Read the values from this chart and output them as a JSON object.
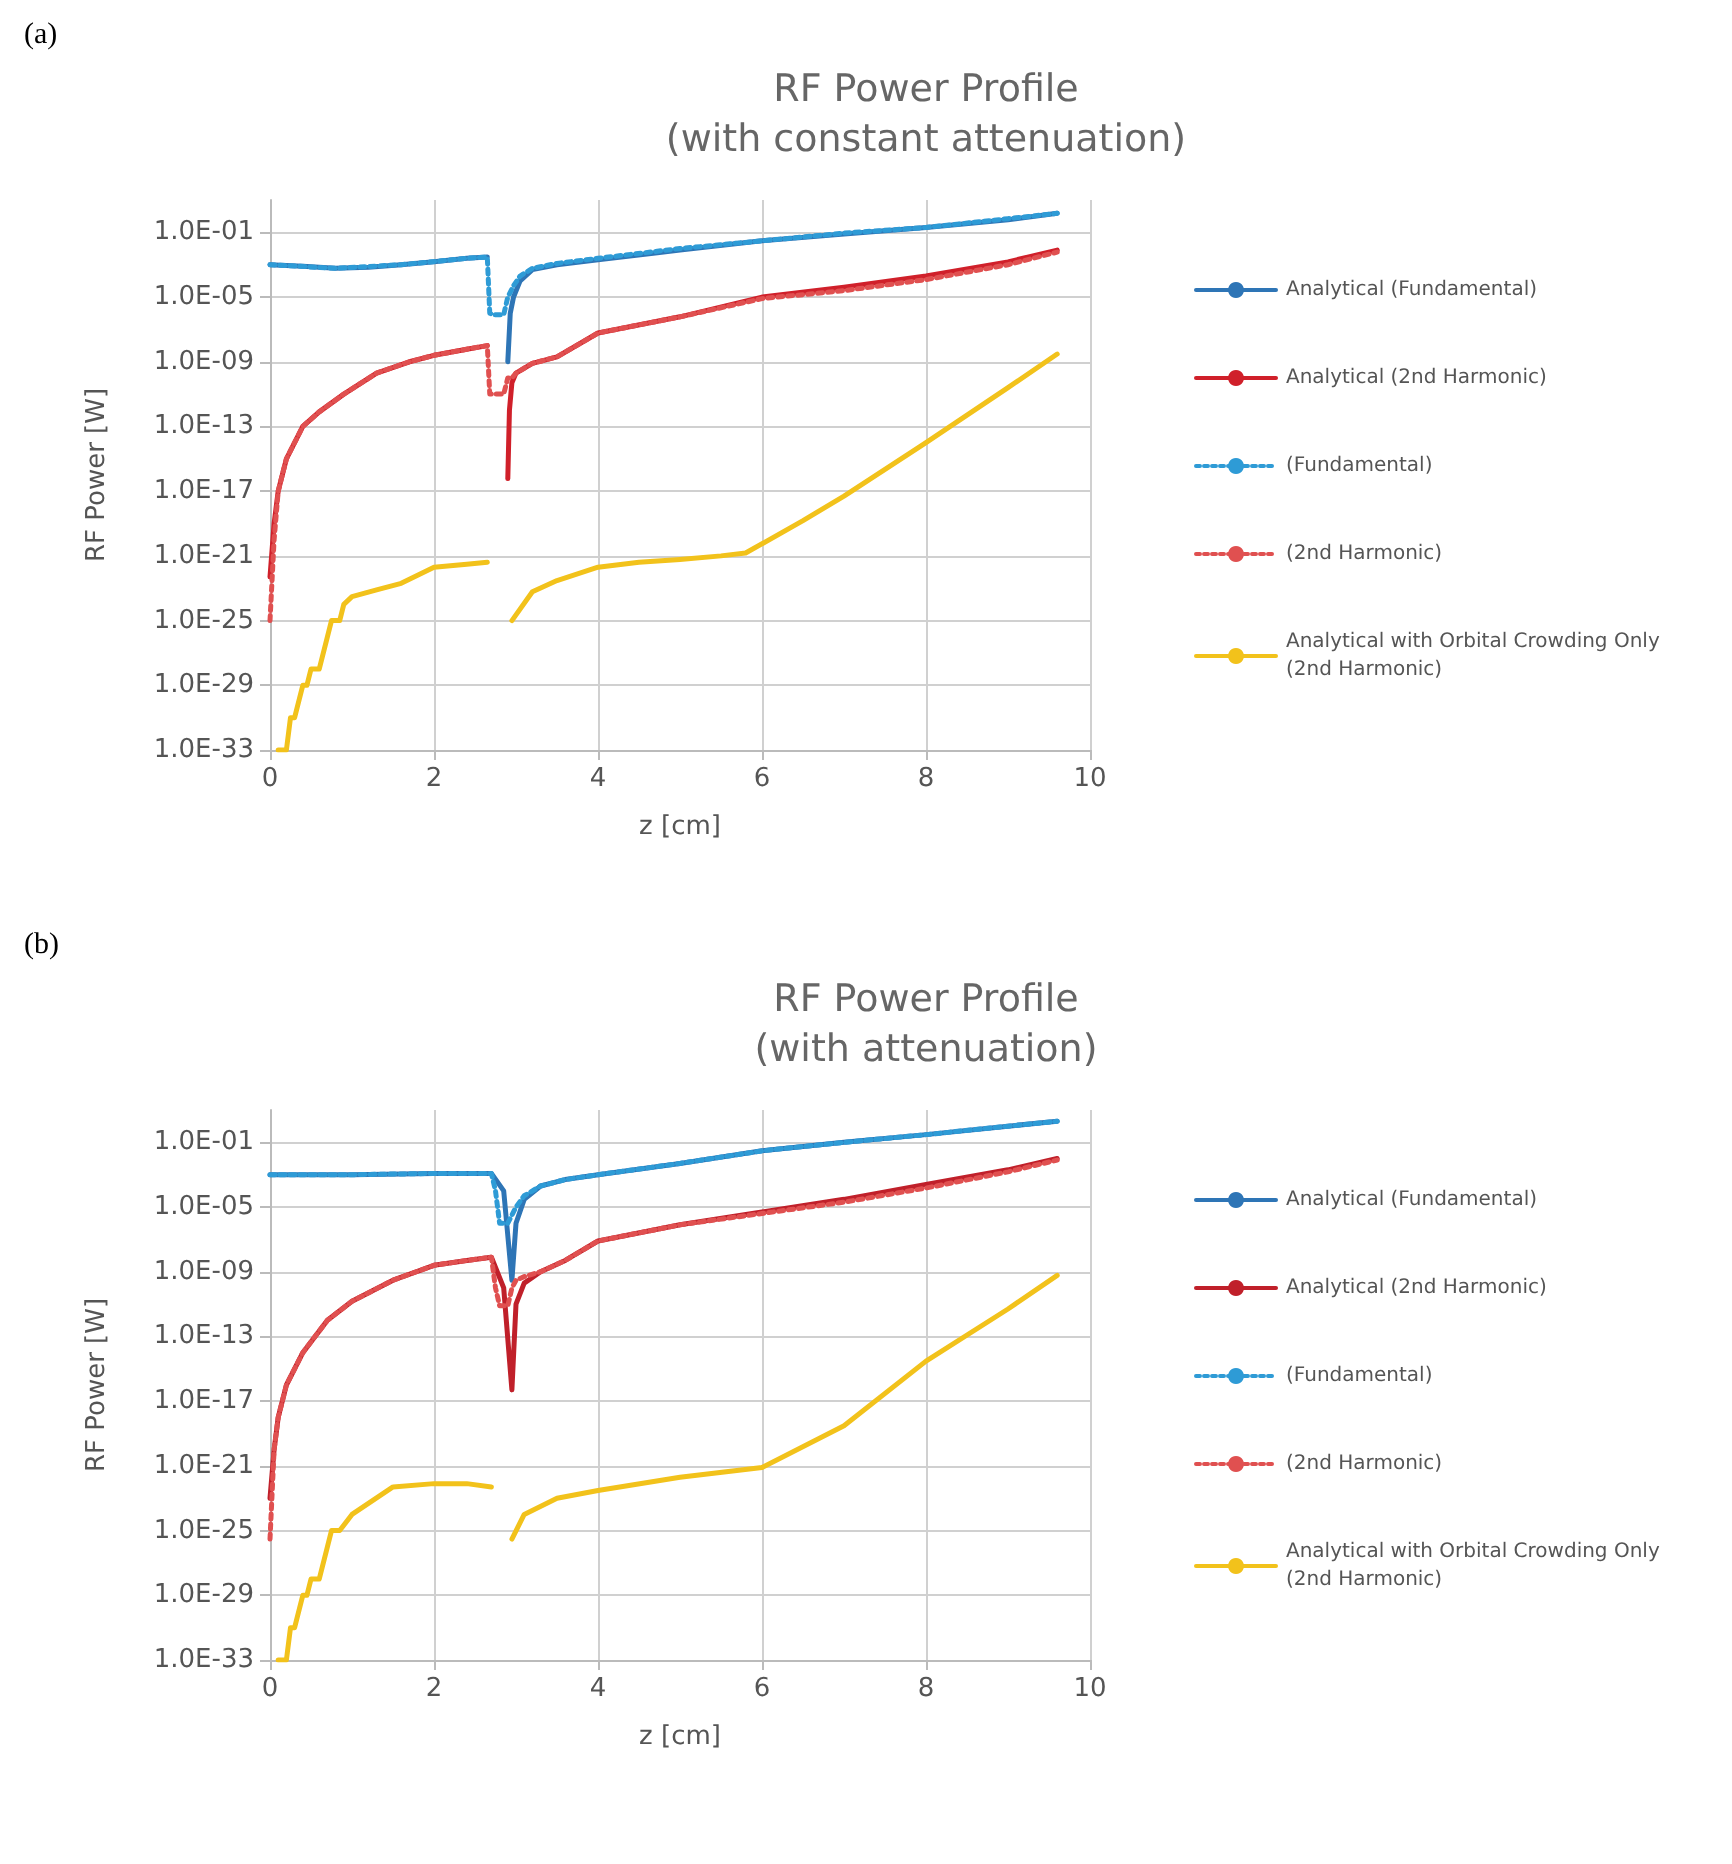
{
  "chart_data": [
    {
      "type": "line",
      "title": "RF Power Profile",
      "subtitle": "(with constant attenuation)",
      "xlabel": "z [cm]",
      "ylabel": "RF Power [W]",
      "annotations": [
        "(a)"
      ],
      "log": "y",
      "grid": true,
      "legend": "right",
      "marker": "none",
      "xlim": [
        0,
        10
      ],
      "xticks": [
        0,
        2,
        4,
        6,
        8,
        10
      ],
      "ylim": [
        1e-33,
        10
      ],
      "yticks": [
        {
          "value": 1e-33,
          "label": "1.0E-33"
        },
        {
          "value": 1e-29,
          "label": "1.0E-29"
        },
        {
          "value": 1e-25,
          "label": "1.0E-25"
        },
        {
          "value": 1e-21,
          "label": "1.0E-21"
        },
        {
          "value": 1e-17,
          "label": "1.0E-17"
        },
        {
          "value": 1e-13,
          "label": "1.0E-13"
        },
        {
          "value": 1e-09,
          "label": "1.0E-09"
        },
        {
          "value": 1e-05,
          "label": "1.0E-05"
        },
        {
          "value": 0.1,
          "label": "1.0E-01"
        }
      ],
      "series": [
        {
          "name": "Analytical (Fundamental)",
          "color": "#2e75b6",
          "line_style": "solid",
          "x": [
            0,
            0.4,
            0.8,
            1.2,
            1.6,
            2.0,
            2.4,
            2.65,
            2.8,
            2.9,
            2.93,
            2.97,
            3.05,
            3.2,
            3.5,
            4,
            5,
            6,
            7,
            8,
            9,
            9.6
          ],
          "values": [
            0.001,
            0.0008,
            0.0006,
            0.0007,
            0.001,
            0.0015,
            0.0025,
            0.003,
            null,
            1e-09,
            1e-06,
            1e-05,
            0.0001,
            0.0005,
            0.001,
            0.002,
            0.008,
            0.03,
            0.08,
            0.2,
            0.6,
            1.5
          ]
        },
        {
          "name": "Analytical (2nd Harmonic)",
          "color": "#d0202a",
          "line_style": "solid",
          "x": [
            0,
            0.05,
            0.1,
            0.2,
            0.4,
            0.6,
            0.9,
            1.3,
            1.7,
            2.0,
            2.4,
            2.65,
            2.8,
            2.9,
            2.92,
            2.95,
            3.0,
            3.2,
            3.5,
            4,
            5,
            6,
            7,
            8,
            9,
            9.6
          ],
          "values": [
            5e-23,
            1e-19,
            1e-17,
            1e-15,
            1e-13,
            8e-13,
            1e-11,
            2e-10,
            1e-09,
            2.5e-09,
            6e-09,
            1e-08,
            null,
            6e-17,
            1e-12,
            5e-11,
            2e-10,
            8e-10,
            2e-09,
            6e-08,
            6e-07,
            1e-05,
            4e-05,
            0.0002,
            0.0015,
            0.008
          ]
        },
        {
          "name": "(Fundamental)",
          "color": "#2e9bd6",
          "line_style": "dotted",
          "x": [
            0,
            0.8,
            1.6,
            2.4,
            2.65,
            2.68,
            2.72,
            2.85,
            2.9,
            2.97,
            3.05,
            3.2,
            3.5,
            4,
            5,
            6,
            7,
            8,
            9,
            9.6
          ],
          "values": [
            0.001,
            0.0006,
            0.001,
            0.0025,
            0.003,
            1e-06,
            8e-07,
            8e-07,
            1e-05,
            5e-05,
            0.0002,
            0.0006,
            0.0012,
            0.0025,
            0.01,
            0.03,
            0.09,
            0.2,
            0.7,
            1.5
          ]
        },
        {
          "name": "(2nd Harmonic)",
          "color": "#e05050",
          "line_style": "dotted",
          "x": [
            0,
            0.05,
            0.1,
            0.2,
            0.4,
            0.6,
            0.9,
            1.3,
            1.7,
            2.0,
            2.4,
            2.65,
            2.68,
            2.72,
            2.85,
            2.9,
            2.95,
            3.0,
            3.2,
            3.5,
            4,
            5,
            6,
            7,
            8,
            9,
            9.6
          ],
          "values": [
            1e-25,
            1e-20,
            1e-17,
            1e-15,
            1e-13,
            8e-13,
            1e-11,
            2e-10,
            1e-09,
            2.5e-09,
            6e-09,
            1e-08,
            1e-11,
            1e-11,
            1e-11,
            1e-10,
            1e-10,
            2e-10,
            8e-10,
            2e-09,
            6e-08,
            6e-07,
            8e-06,
            2.5e-05,
            0.00012,
            0.001,
            0.006
          ]
        },
        {
          "name": "Analytical with Orbital Crowding Only (2nd Harmonic)",
          "color": "#f2c21b",
          "line_style": "solid",
          "x": [
            0.1,
            0.2,
            0.25,
            0.3,
            0.4,
            0.45,
            0.5,
            0.6,
            0.7,
            0.75,
            0.85,
            0.9,
            1.0,
            1.3,
            1.6,
            2.0,
            2.4,
            2.65,
            2.8,
            2.95,
            3.2,
            3.5,
            4,
            4.5,
            5,
            5.5,
            5.8,
            6.5,
            7,
            8,
            9,
            9.6
          ],
          "values": [
            1e-33,
            1e-33,
            1e-31,
            1e-31,
            1e-29,
            1e-29,
            1e-28,
            1e-28,
            1e-26,
            1e-25,
            1e-25,
            1e-24,
            3e-24,
            8e-24,
            2e-23,
            2e-22,
            3e-22,
            4e-22,
            null,
            1e-25,
            6e-24,
            3e-23,
            2e-22,
            4e-22,
            6e-22,
            1e-21,
            1.5e-21,
            1.5e-19,
            5e-18,
            1e-14,
            2.5e-11,
            3e-09
          ]
        }
      ]
    },
    {
      "type": "line",
      "title": "RF Power Profile",
      "subtitle": "(with attenuation)",
      "xlabel": "z [cm]",
      "ylabel": "RF Power [W]",
      "annotations": [
        "(b)"
      ],
      "log": "y",
      "grid": true,
      "legend": "right",
      "marker": "none",
      "xlim": [
        0,
        10
      ],
      "xticks": [
        0,
        2,
        4,
        6,
        8,
        10
      ],
      "ylim": [
        1e-33,
        10
      ],
      "yticks": [
        {
          "value": 1e-33,
          "label": "1.0E-33"
        },
        {
          "value": 1e-29,
          "label": "1.0E-29"
        },
        {
          "value": 1e-25,
          "label": "1.0E-25"
        },
        {
          "value": 1e-21,
          "label": "1.0E-21"
        },
        {
          "value": 1e-17,
          "label": "1.0E-17"
        },
        {
          "value": 1e-13,
          "label": "1.0E-13"
        },
        {
          "value": 1e-09,
          "label": "1.0E-09"
        },
        {
          "value": 1e-05,
          "label": "1.0E-05"
        },
        {
          "value": 0.1,
          "label": "1.0E-01"
        }
      ],
      "series": [
        {
          "name": "Analytical (Fundamental)",
          "color": "#2e75b6",
          "line_style": "solid",
          "x": [
            0,
            1,
            2,
            2.7,
            2.85,
            2.95,
            3.0,
            3.1,
            3.3,
            3.6,
            4,
            5,
            6,
            7,
            8,
            9,
            9.6
          ],
          "values": [
            0.001,
            0.001,
            0.0012,
            0.0012,
            0.0001,
            3e-10,
            1e-06,
            3e-05,
            0.0002,
            0.0005,
            0.001,
            0.005,
            0.03,
            0.1,
            0.3,
            1,
            2
          ]
        },
        {
          "name": "Analytical (2nd Harmonic)",
          "color": "#c0202a",
          "line_style": "solid",
          "x": [
            0,
            0.05,
            0.1,
            0.2,
            0.4,
            0.7,
            1.0,
            1.5,
            2.0,
            2.4,
            2.7,
            2.85,
            2.95,
            3.0,
            3.1,
            3.3,
            3.6,
            4,
            5,
            6,
            7,
            8,
            9,
            9.6
          ],
          "values": [
            1e-23,
            1e-20,
            1e-18,
            1e-16,
            1e-14,
            1e-12,
            1.5e-11,
            3e-10,
            2.5e-09,
            5e-09,
            8e-09,
            1e-10,
            5e-17,
            1e-11,
            2e-10,
            1e-09,
            5e-09,
            8e-08,
            8e-07,
            5e-06,
            3e-05,
            0.00025,
            0.002,
            0.01
          ]
        },
        {
          "name": "(Fundamental)",
          "color": "#2e9bd6",
          "line_style": "dotted",
          "x": [
            0,
            1,
            2,
            2.7,
            2.75,
            2.8,
            2.9,
            3.0,
            3.1,
            3.3,
            3.6,
            4,
            5,
            6,
            7,
            8,
            9,
            9.6
          ],
          "values": [
            0.001,
            0.001,
            0.0012,
            0.0012,
            0.0001,
            1e-06,
            1e-06,
            1e-05,
            5e-05,
            0.0002,
            0.0005,
            0.001,
            0.005,
            0.03,
            0.1,
            0.3,
            1,
            2
          ]
        },
        {
          "name": "(2nd Harmonic)",
          "color": "#e05050",
          "line_style": "dotted",
          "x": [
            0,
            0.05,
            0.1,
            0.2,
            0.4,
            0.7,
            1.0,
            1.5,
            2.0,
            2.4,
            2.7,
            2.75,
            2.8,
            2.9,
            2.95,
            3.0,
            3.1,
            3.3,
            3.6,
            4,
            5,
            6,
            7,
            8,
            9,
            9.6
          ],
          "values": [
            3e-26,
            1e-20,
            1e-18,
            1e-16,
            1e-14,
            1e-12,
            1.5e-11,
            3e-10,
            2.5e-09,
            5e-09,
            8e-09,
            1e-10,
            8e-12,
            8e-12,
            1e-10,
            3e-10,
            5e-10,
            1e-09,
            5e-09,
            8e-08,
            8e-07,
            4e-06,
            2e-05,
            0.00015,
            0.0015,
            0.008
          ]
        },
        {
          "name": "Analytical with Orbital Crowding Only (2nd Harmonic)",
          "color": "#f2c21b",
          "line_style": "solid",
          "x": [
            0.1,
            0.2,
            0.25,
            0.3,
            0.4,
            0.45,
            0.5,
            0.6,
            0.7,
            0.75,
            0.85,
            1.0,
            1.5,
            2.0,
            2.4,
            2.7,
            2.85,
            2.95,
            3.1,
            3.5,
            4,
            5,
            6,
            7,
            8,
            9,
            9.6
          ],
          "values": [
            1e-33,
            1e-33,
            1e-31,
            1e-31,
            1e-29,
            1e-29,
            1e-28,
            1e-28,
            1e-26,
            1e-25,
            1e-25,
            1e-24,
            5e-23,
            8e-23,
            8e-23,
            5e-23,
            null,
            3e-26,
            1e-24,
            1e-23,
            3e-23,
            2e-22,
            8e-22,
            3e-19,
            3e-15,
            5e-12,
            6e-10
          ]
        }
      ]
    }
  ]
}
